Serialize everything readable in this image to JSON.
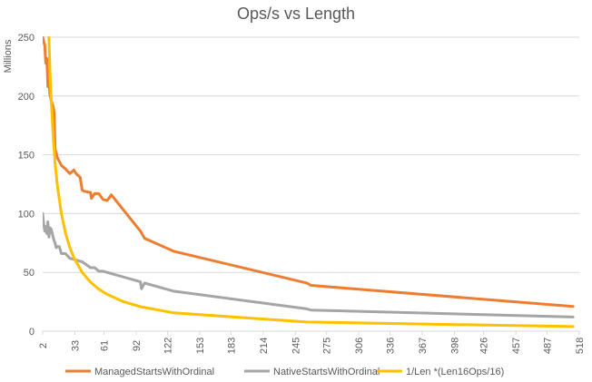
{
  "chart_data": {
    "type": "line",
    "title": "Ops/s vs Length",
    "xlabel": "",
    "ylabel": "Millions",
    "ylim": [
      0,
      250
    ],
    "yticks": [
      0,
      50,
      100,
      150,
      200,
      250
    ],
    "xticks": [
      2,
      33,
      61,
      92,
      122,
      153,
      183,
      214,
      245,
      275,
      306,
      336,
      367,
      398,
      426,
      457,
      487,
      518
    ],
    "xlim": [
      2,
      518
    ],
    "grid": true,
    "legend_position": "bottom",
    "series": [
      {
        "name": "ManagedStartsWithOrdinal",
        "color": "#ed7d31",
        "x": [
          2,
          4,
          5,
          6,
          7,
          8,
          9,
          10,
          11,
          12,
          13,
          14,
          15,
          16,
          17,
          20,
          24,
          28,
          32,
          34,
          38,
          40,
          42,
          48,
          49,
          52,
          56,
          60,
          64,
          68,
          96,
          100,
          128,
          256,
          260,
          512
        ],
        "y": [
          250,
          243,
          228,
          232,
          208,
          212,
          201,
          197,
          194,
          191,
          186,
          154,
          152,
          148,
          146,
          141,
          138,
          134,
          137,
          134,
          131,
          120,
          119,
          118,
          113,
          117,
          117,
          112,
          111,
          116,
          85,
          79,
          68,
          41,
          39,
          21
        ]
      },
      {
        "name": "NativeStartsWithOrdinal",
        "color": "#a5a5a5",
        "x": [
          2,
          3,
          4,
          5,
          6,
          7,
          8,
          9,
          10,
          11,
          12,
          13,
          14,
          15,
          16,
          18,
          20,
          24,
          28,
          32,
          36,
          40,
          48,
          52,
          56,
          60,
          64,
          96,
          97,
          100,
          128,
          256,
          260,
          512
        ],
        "y": [
          100,
          91,
          85,
          89,
          83,
          93,
          80,
          88,
          87,
          84,
          80,
          77,
          75,
          71,
          72,
          72,
          66,
          66,
          62,
          61,
          60,
          59,
          54,
          54,
          51,
          51,
          50,
          42,
          36,
          41,
          34,
          19,
          18,
          12
        ]
      },
      {
        "name": "1/Len *(Len16Ops/16)",
        "color": "#ffc000",
        "x": [
          8,
          9,
          10,
          12,
          14,
          16,
          20,
          24,
          28,
          32,
          40,
          48,
          56,
          64,
          80,
          96,
          128,
          256,
          512
        ],
        "y": [
          250,
          222,
          200,
          166.7,
          142.9,
          125,
          100,
          83.3,
          71.4,
          62.5,
          50,
          41.7,
          35.7,
          31.3,
          25,
          20.8,
          15.6,
          7.8,
          3.9
        ]
      }
    ]
  }
}
